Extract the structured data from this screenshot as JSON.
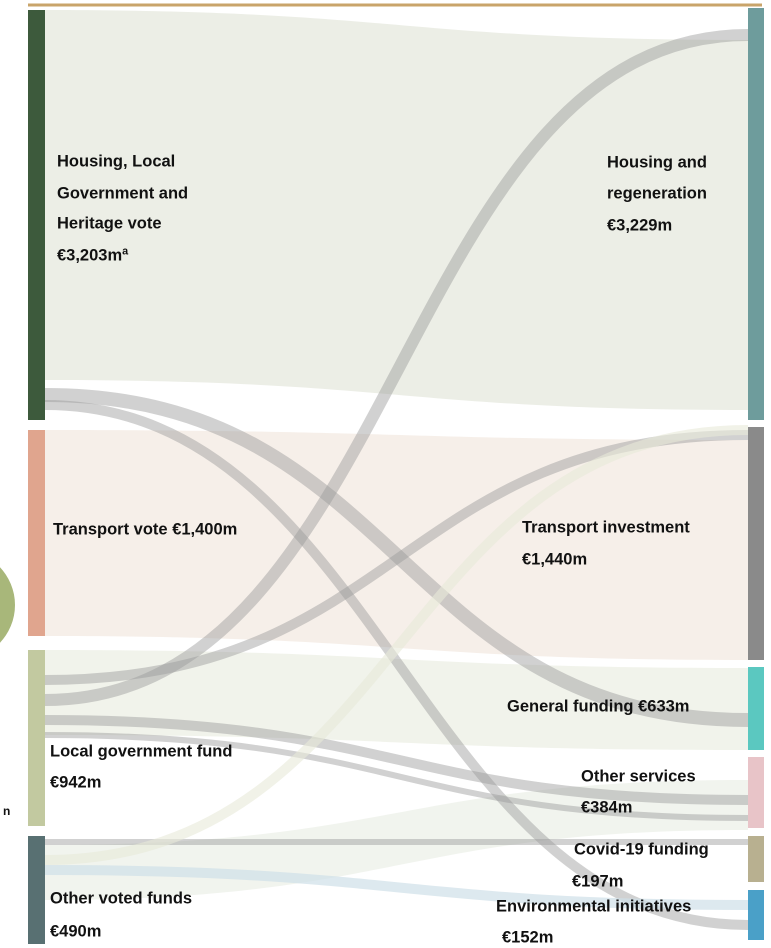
{
  "fragments": [
    "n"
  ],
  "sources": [
    {
      "lines": [
        "Housing, Local",
        "Government and",
        "Heritage vote",
        "€3,203mª"
      ]
    },
    {
      "lines": [
        "Transport vote €1,400m"
      ]
    },
    {
      "lines": [
        "Local government fund",
        "€942m"
      ]
    },
    {
      "lines": [
        "Other voted funds",
        "€490m"
      ]
    }
  ],
  "targets": [
    {
      "lines": [
        "Housing and",
        "regeneration",
        "€3,229m"
      ]
    },
    {
      "lines": [
        "Transport investment",
        "€1,440m"
      ]
    },
    {
      "lines": [
        "General funding €633m"
      ]
    },
    {
      "lines": [
        "Other services",
        "€384m"
      ]
    },
    {
      "lines": [
        "Covid-19 funding",
        "€197m"
      ]
    },
    {
      "lines": [
        "Environmental initiatives",
        "€152m"
      ]
    }
  ]
}
